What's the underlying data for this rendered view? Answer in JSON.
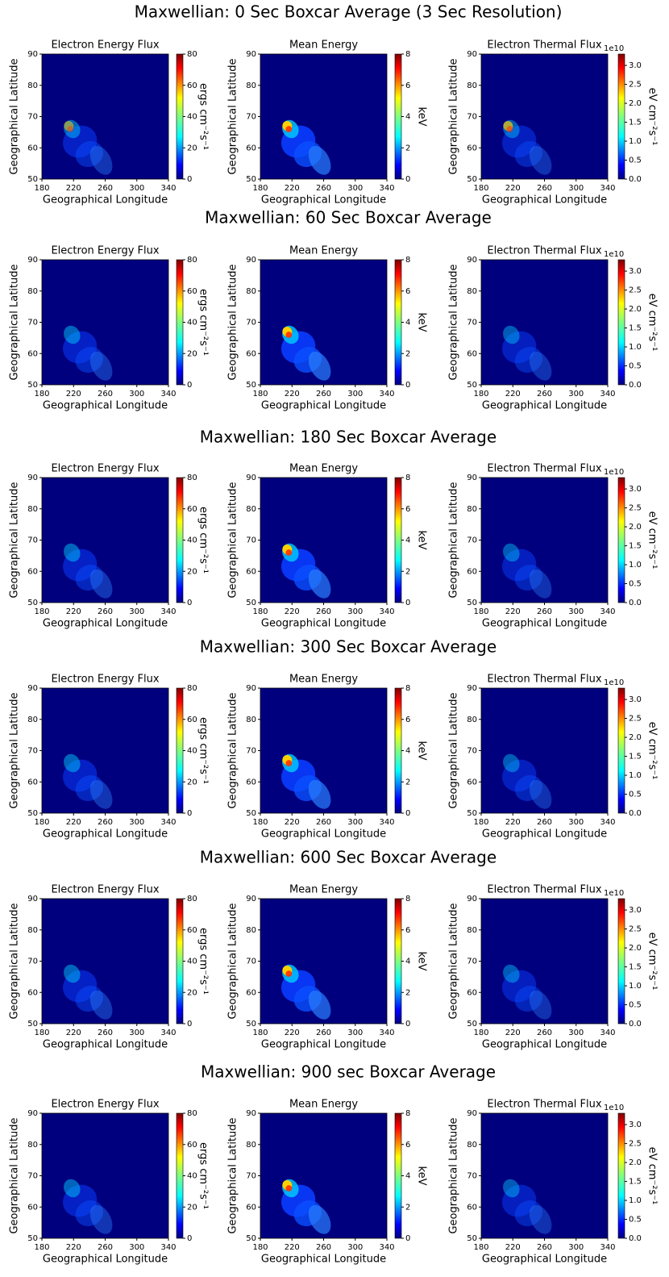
{
  "row_titles": [
    "Maxwellian: 0 Sec Boxcar Average (3 Sec Resolution)",
    "Maxwellian: 60 Sec Boxcar Average",
    "Maxwellian: 180 Sec Boxcar Average",
    "Maxwellian: 300 Sec Boxcar Average",
    "Maxwellian: 600 Sec Boxcar Average",
    "Maxwellian: 900 sec Boxcar Average"
  ],
  "chart_data": [
    {
      "type": "heatmap",
      "title": "Electron Energy Flux",
      "xlabel": "Geographical Longitude",
      "ylabel": "Geographical Latitude",
      "xlim": [
        180,
        340
      ],
      "ylim": [
        50,
        90
      ],
      "xticks": [
        180,
        220,
        260,
        300,
        340
      ],
      "yticks": [
        50,
        60,
        70,
        80,
        90
      ],
      "colorbar": {
        "label": "ergs cm⁻²s⁻¹",
        "lim": [
          0,
          80
        ],
        "ticks": [
          0,
          20,
          40,
          60,
          80
        ]
      }
    },
    {
      "type": "heatmap",
      "title": "Mean Energy",
      "xlabel": "Geographical Longitude",
      "ylabel": "Geographical Latitude",
      "xlim": [
        180,
        340
      ],
      "ylim": [
        50,
        90
      ],
      "xticks": [
        180,
        220,
        260,
        300,
        340
      ],
      "yticks": [
        50,
        60,
        70,
        80,
        90
      ],
      "colorbar": {
        "label": "keV",
        "lim": [
          0,
          8
        ],
        "ticks": [
          0,
          2,
          4,
          6,
          8
        ]
      }
    },
    {
      "type": "heatmap",
      "title": "Electron Thermal Flux",
      "xlabel": "Geographical Longitude",
      "ylabel": "Geographical Latitude",
      "xlim": [
        180,
        340
      ],
      "ylim": [
        50,
        90
      ],
      "xticks": [
        180,
        220,
        260,
        300,
        340
      ],
      "yticks": [
        50,
        60,
        70,
        80,
        90
      ],
      "colorbar": {
        "label": "eV cm⁻²s⁻¹",
        "offset": "1e10",
        "lim": [
          0,
          3.3
        ],
        "ticks": [
          {
            "value": 0,
            "label": "0.0"
          },
          0.5,
          {
            "value": 1,
            "label": "1.0"
          },
          1.5,
          {
            "value": 2,
            "label": "2.0"
          },
          2.5,
          {
            "value": 3,
            "label": "3.0"
          }
        ]
      }
    },
    {
      "type": "heatmap",
      "title": "Electron Energy Flux",
      "xlabel": "Geographical Longitude",
      "ylabel": "Geographical Latitude",
      "xlim": [
        180,
        340
      ],
      "ylim": [
        50,
        90
      ],
      "xticks": [
        180,
        220,
        260,
        300,
        340
      ],
      "yticks": [
        50,
        60,
        70,
        80,
        90
      ],
      "colorbar": {
        "label": "ergs cm⁻²s⁻¹",
        "lim": [
          0,
          80
        ],
        "ticks": [
          0,
          20,
          40,
          60,
          80
        ]
      }
    },
    {
      "type": "heatmap",
      "title": "Mean Energy",
      "xlabel": "Geographical Longitude",
      "ylabel": "Geographical Latitude",
      "xlim": [
        180,
        340
      ],
      "ylim": [
        50,
        90
      ],
      "xticks": [
        180,
        220,
        260,
        300,
        340
      ],
      "yticks": [
        50,
        60,
        70,
        80,
        90
      ],
      "colorbar": {
        "label": "keV",
        "lim": [
          0,
          8
        ],
        "ticks": [
          0,
          2,
          4,
          6,
          8
        ]
      }
    },
    {
      "type": "heatmap",
      "title": "Electron Thermal Flux",
      "xlabel": "Geographical Longitude",
      "ylabel": "Geographical Latitude",
      "xlim": [
        180,
        340
      ],
      "ylim": [
        50,
        90
      ],
      "xticks": [
        180,
        220,
        260,
        300,
        340
      ],
      "yticks": [
        50,
        60,
        70,
        80,
        90
      ],
      "colorbar": {
        "label": "eV cm⁻²s⁻¹",
        "offset": "1e10",
        "lim": [
          0,
          3.3
        ],
        "ticks": [
          {
            "value": 0,
            "label": "0.0"
          },
          0.5,
          {
            "value": 1,
            "label": "1.0"
          },
          1.5,
          {
            "value": 2,
            "label": "2.0"
          },
          2.5,
          {
            "value": 3,
            "label": "3.0"
          }
        ]
      }
    },
    {
      "type": "heatmap",
      "title": "Electron Energy Flux",
      "xlabel": "Geographical Longitude",
      "ylabel": "Geographical Latitude",
      "xlim": [
        180,
        340
      ],
      "ylim": [
        50,
        90
      ],
      "xticks": [
        180,
        220,
        260,
        300,
        340
      ],
      "yticks": [
        50,
        60,
        70,
        80,
        90
      ],
      "colorbar": {
        "label": "ergs cm⁻²s⁻¹",
        "lim": [
          0,
          80
        ],
        "ticks": [
          0,
          20,
          40,
          60,
          80
        ]
      }
    },
    {
      "type": "heatmap",
      "title": "Mean Energy",
      "xlabel": "Geographical Longitude",
      "ylabel": "Geographical Latitude",
      "xlim": [
        180,
        340
      ],
      "ylim": [
        50,
        90
      ],
      "xticks": [
        180,
        220,
        260,
        300,
        340
      ],
      "yticks": [
        50,
        60,
        70,
        80,
        90
      ],
      "colorbar": {
        "label": "keV",
        "lim": [
          0,
          8
        ],
        "ticks": [
          0,
          2,
          4,
          6,
          8
        ]
      }
    },
    {
      "type": "heatmap",
      "title": "Electron Thermal Flux",
      "xlabel": "Geographical Longitude",
      "ylabel": "Geographical Latitude",
      "xlim": [
        180,
        340
      ],
      "ylim": [
        50,
        90
      ],
      "xticks": [
        180,
        220,
        260,
        300,
        340
      ],
      "yticks": [
        50,
        60,
        70,
        80,
        90
      ],
      "colorbar": {
        "label": "eV cm⁻²s⁻¹",
        "offset": "1e10",
        "lim": [
          0,
          3.3
        ],
        "ticks": [
          {
            "value": 0,
            "label": "0.0"
          },
          0.5,
          {
            "value": 1,
            "label": "1.0"
          },
          1.5,
          {
            "value": 2,
            "label": "2.0"
          },
          2.5,
          {
            "value": 3,
            "label": "3.0"
          }
        ]
      }
    },
    {
      "type": "heatmap",
      "title": "Electron Energy Flux",
      "xlabel": "Geographical Longitude",
      "ylabel": "Geographical Latitude",
      "xlim": [
        180,
        340
      ],
      "ylim": [
        50,
        90
      ],
      "xticks": [
        180,
        220,
        260,
        300,
        340
      ],
      "yticks": [
        50,
        60,
        70,
        80,
        90
      ],
      "colorbar": {
        "label": "ergs cm⁻²s⁻¹",
        "lim": [
          0,
          80
        ],
        "ticks": [
          0,
          20,
          40,
          60,
          80
        ]
      }
    },
    {
      "type": "heatmap",
      "title": "Mean Energy",
      "xlabel": "Geographical Longitude",
      "ylabel": "Geographical Latitude",
      "xlim": [
        180,
        340
      ],
      "ylim": [
        50,
        90
      ],
      "xticks": [
        180,
        220,
        260,
        300,
        340
      ],
      "yticks": [
        50,
        60,
        70,
        80,
        90
      ],
      "colorbar": {
        "label": "keV",
        "lim": [
          0,
          8
        ],
        "ticks": [
          0,
          2,
          4,
          6,
          8
        ]
      }
    },
    {
      "type": "heatmap",
      "title": "Electron Thermal Flux",
      "xlabel": "Geographical Longitude",
      "ylabel": "Geographical Latitude",
      "xlim": [
        180,
        340
      ],
      "ylim": [
        50,
        90
      ],
      "xticks": [
        180,
        220,
        260,
        300,
        340
      ],
      "yticks": [
        50,
        60,
        70,
        80,
        90
      ],
      "colorbar": {
        "label": "eV cm⁻²s⁻¹",
        "offset": "1e10",
        "lim": [
          0,
          3.3
        ],
        "ticks": [
          {
            "value": 0,
            "label": "0.0"
          },
          0.5,
          {
            "value": 1,
            "label": "1.0"
          },
          1.5,
          {
            "value": 2,
            "label": "2.0"
          },
          2.5,
          {
            "value": 3,
            "label": "3.0"
          }
        ]
      }
    },
    {
      "type": "heatmap",
      "title": "Electron Energy Flux",
      "xlabel": "Geographical Longitude",
      "ylabel": "Geographical Latitude",
      "xlim": [
        180,
        340
      ],
      "ylim": [
        50,
        90
      ],
      "xticks": [
        180,
        220,
        260,
        300,
        340
      ],
      "yticks": [
        50,
        60,
        70,
        80,
        90
      ],
      "colorbar": {
        "label": "ergs cm⁻²s⁻¹",
        "lim": [
          0,
          80
        ],
        "ticks": [
          0,
          20,
          40,
          60,
          80
        ]
      }
    },
    {
      "type": "heatmap",
      "title": "Mean Energy",
      "xlabel": "Geographical Longitude",
      "ylabel": "Geographical Latitude",
      "xlim": [
        180,
        340
      ],
      "ylim": [
        50,
        90
      ],
      "xticks": [
        180,
        220,
        260,
        300,
        340
      ],
      "yticks": [
        50,
        60,
        70,
        80,
        90
      ],
      "colorbar": {
        "label": "keV",
        "lim": [
          0,
          8
        ],
        "ticks": [
          0,
          2,
          4,
          6,
          8
        ]
      }
    },
    {
      "type": "heatmap",
      "title": "Electron Thermal Flux",
      "xlabel": "Geographical Longitude",
      "ylabel": "Geographical Latitude",
      "xlim": [
        180,
        340
      ],
      "ylim": [
        50,
        90
      ],
      "xticks": [
        180,
        220,
        260,
        300,
        340
      ],
      "yticks": [
        50,
        60,
        70,
        80,
        90
      ],
      "colorbar": {
        "label": "eV cm⁻²s⁻¹",
        "offset": "1e10",
        "lim": [
          0,
          3.3
        ],
        "ticks": [
          {
            "value": 0,
            "label": "0.0"
          },
          0.5,
          {
            "value": 1,
            "label": "1.0"
          },
          1.5,
          {
            "value": 2,
            "label": "2.0"
          },
          2.5,
          {
            "value": 3,
            "label": "3.0"
          }
        ]
      }
    },
    {
      "type": "heatmap",
      "title": "Electron Energy Flux",
      "xlabel": "Geographical Longitude",
      "ylabel": "Geographical Latitude",
      "xlim": [
        180,
        340
      ],
      "ylim": [
        50,
        90
      ],
      "xticks": [
        180,
        220,
        260,
        300,
        340
      ],
      "yticks": [
        50,
        60,
        70,
        80,
        90
      ],
      "colorbar": {
        "label": "ergs cm⁻²s⁻¹",
        "lim": [
          0,
          80
        ],
        "ticks": [
          0,
          20,
          40,
          60,
          80
        ]
      }
    },
    {
      "type": "heatmap",
      "title": "Mean Energy",
      "xlabel": "Geographical Longitude",
      "ylabel": "Geographical Latitude",
      "xlim": [
        180,
        340
      ],
      "ylim": [
        50,
        90
      ],
      "xticks": [
        180,
        220,
        260,
        300,
        340
      ],
      "yticks": [
        50,
        60,
        70,
        80,
        90
      ],
      "colorbar": {
        "label": "keV",
        "lim": [
          0,
          8
        ],
        "ticks": [
          0,
          2,
          4,
          6,
          8
        ]
      }
    },
    {
      "type": "heatmap",
      "title": "Electron Thermal Flux",
      "xlabel": "Geographical Longitude",
      "ylabel": "Geographical Latitude",
      "xlim": [
        180,
        340
      ],
      "ylim": [
        50,
        90
      ],
      "xticks": [
        180,
        220,
        260,
        300,
        340
      ],
      "yticks": [
        50,
        60,
        70,
        80,
        90
      ],
      "colorbar": {
        "label": "eV cm⁻²s⁻¹",
        "offset": "1e10",
        "lim": [
          0,
          3.3
        ],
        "ticks": [
          {
            "value": 0,
            "label": "0.0"
          },
          0.5,
          {
            "value": 1,
            "label": "1.0"
          },
          1.5,
          {
            "value": 2,
            "label": "2.0"
          },
          2.5,
          {
            "value": 3,
            "label": "3.0"
          }
        ]
      }
    }
  ]
}
